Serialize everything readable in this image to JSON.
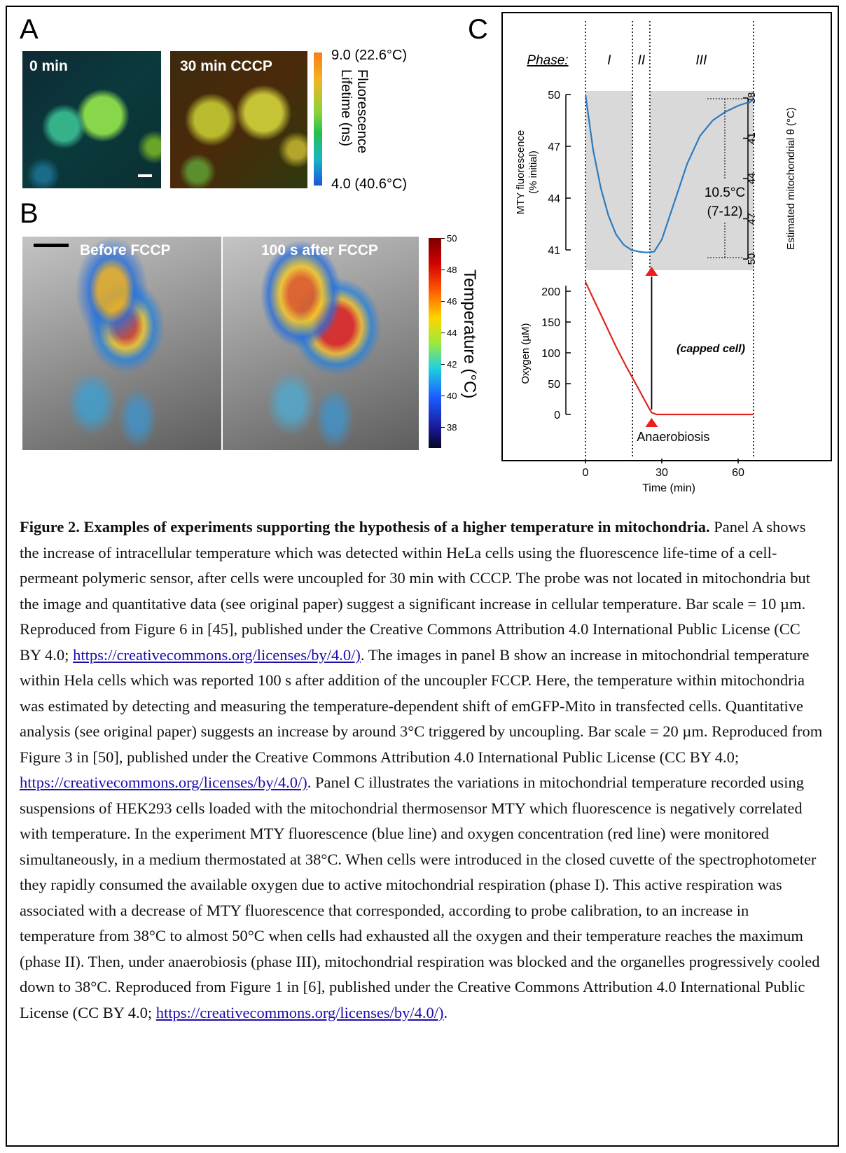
{
  "panel_labels": {
    "a": "A",
    "b": "B",
    "c": "C"
  },
  "panel_a": {
    "image1_label": "0 min",
    "image2_label": "30 min CCCP",
    "colorbar_top": "9.0 (22.6°C)",
    "colorbar_bottom": "4.0 (40.6°C)",
    "colorbar_title_line1": "Fluorescence",
    "colorbar_title_line2": "Lifetime (ns)"
  },
  "panel_b": {
    "image1_label": "Before FCCP",
    "image2_label": "100 s after FCCP",
    "colorbar_title": "Temperature (°C)",
    "colorbar_ticks": [
      "50",
      "48",
      "46",
      "44",
      "42",
      "40",
      "38"
    ]
  },
  "chart_data": {
    "type": "line",
    "phase_header": "Phase:",
    "phases": [
      "I",
      "II",
      "III"
    ],
    "x": {
      "label": "Time (min)",
      "ticks": [
        "0",
        "30",
        "60"
      ],
      "range": [
        0,
        70
      ]
    },
    "top_left_axis": {
      "label_line1": "MTY fluorescence",
      "label_line2": "(% initial)",
      "ticks": [
        "50",
        "47",
        "44",
        "41"
      ],
      "range": [
        40.3,
        50.3
      ]
    },
    "top_right_axis": {
      "label": "Estimated mitochondrial θ (°C)",
      "ticks": [
        "38",
        "41",
        "44",
        "47",
        "50"
      ]
    },
    "bottom_left_axis": {
      "label": "Oxygen (µM)",
      "ticks": [
        "200",
        "150",
        "100",
        "50",
        "0"
      ],
      "range": [
        0,
        210
      ]
    },
    "series": [
      {
        "name": "MTY fluorescence",
        "color": "#2c7bbf",
        "x": [
          0,
          3,
          6,
          9,
          12,
          15,
          18,
          21,
          24,
          27,
          30,
          35,
          40,
          45,
          50,
          55,
          60,
          65,
          66
        ],
        "y": [
          50,
          46.8,
          44.6,
          43.0,
          41.9,
          41.3,
          41.0,
          40.9,
          40.85,
          40.9,
          41.6,
          43.8,
          46.0,
          47.6,
          48.5,
          49.0,
          49.35,
          49.6,
          49.7
        ]
      },
      {
        "name": "Oxygen",
        "color": "#e0251b",
        "x": [
          0,
          4,
          8,
          12,
          16,
          20,
          23,
          25,
          26,
          28,
          35,
          45,
          55,
          66
        ],
        "y": [
          215,
          180,
          145,
          110,
          78,
          48,
          25,
          10,
          3,
          0,
          0,
          0,
          0,
          0
        ]
      }
    ],
    "annotation_delta": "10.5°C",
    "annotation_range": "(7-12)",
    "annotation_capped": "(capped cell)",
    "annotation_anaerobiosis": "Anaerobiosis",
    "marker_color": "#ee1c1c",
    "shade_color": "#d9d9d9"
  },
  "caption": {
    "title": "Figure 2. Examples of experiments supporting the hypothesis of a higher temperature in mitochondria.",
    "part1": " Panel A shows the increase of intracellular temperature which was detected within HeLa cells using the fluorescence life-time of a cell-permeant polymeric sensor, after cells were uncoupled for 30 min with CCCP. The probe was not located in mitochondria but the image and quantitative data (see original paper) suggest a significant increase in cellular temperature. Bar scale = 10 µm. Reproduced from Figure 6 in [45], published under the Creative Commons Attribution 4.0 International Public License (CC BY 4.0; ",
    "link1": "https://creativecommons.org/licenses/by/4.0/)",
    "part2": ". The images in panel B show an increase in mitochondrial temperature within Hela cells which was reported 100 s after addition of the uncoupler FCCP. Here, the temperature within mitochondria was estimated by detecting and measuring the temperature-dependent shift of emGFP-Mito in transfected cells. Quantitative analysis (see original paper) suggests an increase by around 3°C triggered by uncoupling. Bar scale = 20 µm. Reproduced from Figure 3 in [50], published under the Creative Commons Attribution 4.0 International Public License (CC BY 4.0; ",
    "link2": "https://creativecommons.org/licenses/by/4.0/)",
    "part3": ". Panel C illustrates the variations in mitochondrial temperature recorded using suspensions of HEK293 cells loaded with the mitochondrial thermosensor MTY which fluorescence is negatively correlated with temperature. In the experiment MTY fluorescence (blue line) and oxygen concentration (red line) were monitored simultaneously, in a medium thermostated at 38°C. When cells were introduced in the closed cuvette of the spectrophotometer they rapidly consumed the available oxygen due to active mitochondrial respiration (phase I). This active respiration was associated with a decrease of MTY fluorescence that corresponded, according to probe calibration, to an increase in temperature from 38°C to almost 50°C when cells had exhausted all the oxygen and their temperature reaches the maximum (phase II). Then, under anaerobiosis (phase III), mitochondrial respiration was blocked and the organelles progressively cooled down to 38°C. Reproduced from Figure 1 in [6], published under the Creative Commons Attribution 4.0 International Public License (CC BY 4.0; ",
    "link3": "https://creativecommons.org/licenses/by/4.0/)",
    "part4": "."
  }
}
